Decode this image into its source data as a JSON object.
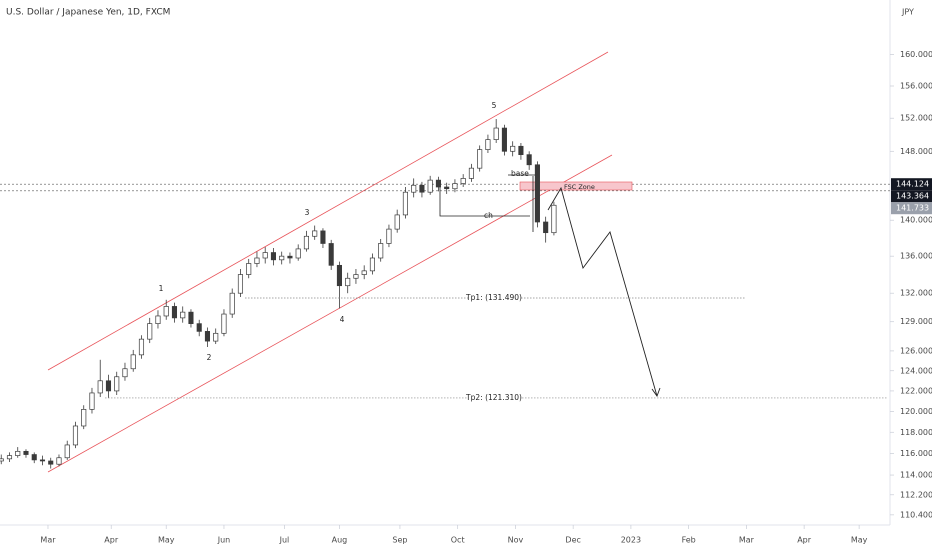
{
  "chart_data": {
    "type": "candlestick",
    "title": "U.S. Dollar / Japanese Yen, 1D, FXCM",
    "currency": "JPY",
    "log_scale": true,
    "candle_color": "#3a3a3a",
    "ylim": [
      109.5,
      167.2
    ],
    "yticks": [
      {
        "value": 160,
        "label": "160.000"
      },
      {
        "value": 156,
        "label": "156.000"
      },
      {
        "value": 152,
        "label": "152.000"
      },
      {
        "value": 148,
        "label": "148.000"
      },
      {
        "value": 140,
        "label": "140.000"
      },
      {
        "value": 136,
        "label": "136.000"
      },
      {
        "value": 132,
        "label": "132.000"
      },
      {
        "value": 129,
        "label": "129.000"
      },
      {
        "value": 126,
        "label": "126.000"
      },
      {
        "value": 124,
        "label": "124.000"
      },
      {
        "value": 122,
        "label": "122.000"
      },
      {
        "value": 120,
        "label": "120.000"
      },
      {
        "value": 118,
        "label": "118.000"
      },
      {
        "value": 116,
        "label": "116.000"
      },
      {
        "value": 114,
        "label": "114.000"
      },
      {
        "value": 112.2,
        "label": "112.200"
      },
      {
        "value": 110.4,
        "label": "110.400"
      }
    ],
    "xlim": [
      -17.45,
      305.5
    ],
    "xticks": [
      {
        "value": 0,
        "label": "Mar"
      },
      {
        "value": 23,
        "label": "Apr"
      },
      {
        "value": 43,
        "label": "May"
      },
      {
        "value": 64,
        "label": "Jun"
      },
      {
        "value": 86,
        "label": "Jul"
      },
      {
        "value": 106,
        "label": "Aug"
      },
      {
        "value": 128,
        "label": "Sep"
      },
      {
        "value": 149,
        "label": "Oct"
      },
      {
        "value": 170,
        "label": "Nov"
      },
      {
        "value": 191,
        "label": "Dec"
      },
      {
        "value": 212,
        "label": "2023"
      },
      {
        "value": 233,
        "label": "Feb"
      },
      {
        "value": 254,
        "label": "Mar"
      },
      {
        "value": 275,
        "label": "Apr"
      },
      {
        "value": 295,
        "label": "May"
      }
    ],
    "x": [
      -17,
      -14,
      -11,
      -8,
      -5,
      -2,
      1,
      4,
      7,
      10,
      13,
      16,
      19,
      22,
      25,
      28,
      31,
      34,
      37,
      40,
      43,
      46,
      49,
      52,
      55,
      58,
      61,
      64,
      67,
      70,
      73,
      76,
      79,
      82,
      85,
      88,
      91,
      94,
      97,
      100,
      103,
      106,
      109,
      112,
      115,
      118,
      121,
      124,
      127,
      130,
      133,
      136,
      139,
      142,
      145,
      148,
      151,
      154,
      157,
      160,
      163,
      166,
      169,
      172,
      175,
      178,
      181,
      184
    ],
    "candles": [
      [
        115.3,
        115.9,
        115.0,
        115.5
      ],
      [
        115.5,
        116.1,
        115.2,
        115.8
      ],
      [
        115.8,
        116.6,
        115.6,
        116.2
      ],
      [
        116.2,
        116.4,
        115.6,
        115.9
      ],
      [
        115.9,
        116.1,
        115.1,
        115.4
      ],
      [
        115.4,
        115.8,
        114.9,
        115.3
      ],
      [
        115.3,
        115.6,
        114.6,
        115.0
      ],
      [
        115.0,
        115.9,
        114.8,
        115.6
      ],
      [
        115.6,
        117.2,
        115.4,
        116.8
      ],
      [
        116.8,
        119.0,
        116.5,
        118.6
      ],
      [
        118.6,
        120.6,
        118.3,
        120.2
      ],
      [
        120.2,
        122.3,
        119.8,
        121.8
      ],
      [
        121.8,
        125.1,
        121.4,
        123.0
      ],
      [
        123.0,
        123.6,
        121.3,
        122.0
      ],
      [
        122.0,
        123.9,
        121.6,
        123.4
      ],
      [
        123.4,
        124.8,
        123.0,
        124.2
      ],
      [
        124.2,
        126.1,
        123.9,
        125.6
      ],
      [
        125.6,
        127.6,
        125.2,
        127.2
      ],
      [
        127.2,
        129.4,
        126.8,
        128.8
      ],
      [
        128.8,
        130.2,
        128.3,
        129.6
      ],
      [
        129.6,
        131.3,
        129.2,
        130.6
      ],
      [
        130.6,
        131.0,
        128.9,
        129.4
      ],
      [
        129.4,
        130.6,
        128.9,
        130.0
      ],
      [
        130.0,
        130.3,
        128.4,
        128.8
      ],
      [
        128.8,
        129.2,
        127.5,
        128.0
      ],
      [
        128.0,
        128.4,
        126.4,
        127.0
      ],
      [
        127.0,
        128.3,
        126.7,
        127.8
      ],
      [
        127.8,
        130.3,
        127.5,
        129.8
      ],
      [
        129.8,
        132.5,
        129.4,
        132.0
      ],
      [
        132.0,
        134.6,
        131.6,
        134.0
      ],
      [
        134.0,
        135.7,
        133.6,
        135.2
      ],
      [
        135.2,
        136.5,
        134.8,
        135.8
      ],
      [
        135.8,
        137.0,
        135.2,
        136.4
      ],
      [
        136.4,
        136.9,
        135.0,
        135.6
      ],
      [
        135.6,
        136.5,
        135.1,
        136.0
      ],
      [
        136.0,
        136.4,
        135.2,
        135.8
      ],
      [
        135.8,
        137.3,
        135.5,
        136.8
      ],
      [
        136.8,
        138.8,
        136.5,
        138.2
      ],
      [
        138.2,
        139.4,
        137.8,
        138.8
      ],
      [
        138.8,
        139.1,
        136.9,
        137.4
      ],
      [
        137.4,
        137.8,
        134.5,
        135.0
      ],
      [
        135.0,
        135.4,
        130.4,
        132.8
      ],
      [
        132.8,
        134.2,
        132.0,
        133.6
      ],
      [
        133.6,
        134.6,
        133.0,
        134.0
      ],
      [
        134.0,
        135.0,
        133.5,
        134.4
      ],
      [
        134.4,
        136.3,
        134.0,
        135.8
      ],
      [
        135.8,
        137.9,
        135.4,
        137.4
      ],
      [
        137.4,
        139.5,
        137.0,
        139.0
      ],
      [
        139.0,
        141.2,
        138.6,
        140.6
      ],
      [
        140.6,
        143.8,
        140.2,
        143.2
      ],
      [
        143.2,
        144.8,
        142.6,
        144.0
      ],
      [
        144.0,
        144.4,
        142.6,
        143.2
      ],
      [
        143.2,
        145.1,
        142.9,
        144.6
      ],
      [
        144.6,
        145.0,
        143.3,
        143.8
      ],
      [
        143.8,
        144.3,
        143.0,
        143.6
      ],
      [
        143.6,
        144.7,
        143.2,
        144.2
      ],
      [
        144.2,
        145.3,
        143.8,
        144.8
      ],
      [
        144.8,
        146.5,
        144.4,
        146.0
      ],
      [
        146.0,
        148.7,
        145.6,
        148.2
      ],
      [
        148.2,
        150.0,
        147.8,
        149.4
      ],
      [
        149.4,
        151.9,
        149.0,
        150.8
      ],
      [
        150.8,
        151.2,
        147.5,
        148.0
      ],
      [
        148.0,
        149.2,
        147.4,
        148.6
      ],
      [
        148.6,
        149.0,
        147.0,
        147.6
      ],
      [
        147.6,
        148.0,
        145.8,
        146.4
      ],
      [
        146.4,
        146.8,
        139.2,
        139.8
      ],
      [
        139.8,
        140.4,
        137.5,
        138.6
      ],
      [
        138.6,
        142.1,
        138.3,
        141.7
      ]
    ],
    "price_lines": [
      144.124,
      143.364,
      141.733
    ],
    "price_line_colors": [
      "#131722",
      "#131722",
      "#9aa0ab"
    ],
    "annotations": [
      {
        "text": "Tp1: (131.490)",
        "value": 131.49
      },
      {
        "text": "Tp2: (121.310)",
        "value": 121.31
      }
    ],
    "wave_labels": [
      "1",
      "2",
      "3",
      "4",
      "5"
    ],
    "drawing_labels": [
      "base",
      "ch",
      "FSC Zone"
    ]
  }
}
